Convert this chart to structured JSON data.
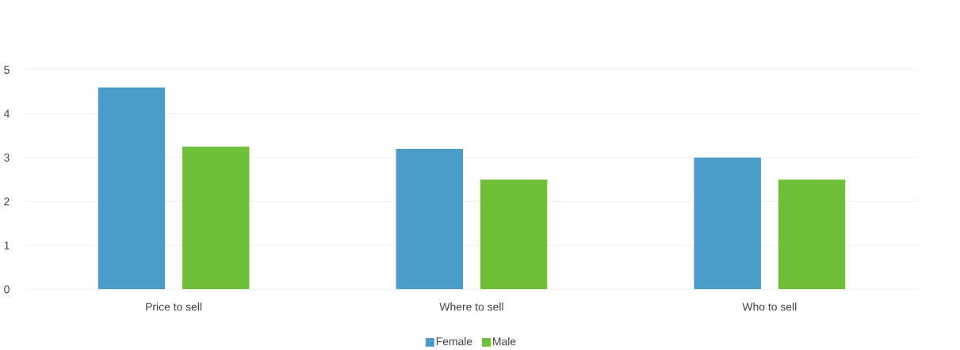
{
  "chart_data": {
    "type": "bar",
    "categories": [
      "Price to sell",
      "Where to sell",
      "Who to sell"
    ],
    "series": [
      {
        "name": "Female",
        "color": "#4a9ccb",
        "values": [
          4.6,
          3.2,
          3.0
        ]
      },
      {
        "name": "Male",
        "color": "#70bf3a",
        "values": [
          3.25,
          2.5,
          2.5
        ]
      }
    ],
    "ylim": [
      0,
      5
    ],
    "yticks": [
      0,
      1,
      2,
      3,
      4,
      5
    ],
    "grid": "y",
    "legend": "bottom"
  }
}
